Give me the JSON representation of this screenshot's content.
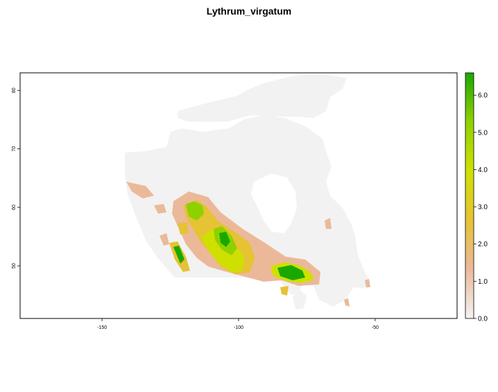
{
  "title": "Lythrum_virgatum",
  "map": {
    "xlim": [
      -180,
      -20
    ],
    "ylim": [
      41,
      83
    ],
    "x_ticks": [
      {
        "value": -150,
        "label": "-150"
      },
      {
        "value": -100,
        "label": "-100"
      },
      {
        "value": -50,
        "label": "-50"
      }
    ],
    "y_ticks": [
      {
        "value": 50,
        "label": "50"
      },
      {
        "value": 60,
        "label": "60"
      },
      {
        "value": 70,
        "label": "70"
      },
      {
        "value": 80,
        "label": "80"
      }
    ]
  },
  "legend": {
    "range": [
      0,
      6.6
    ],
    "ticks": [
      {
        "value": 0,
        "label": "0.0"
      },
      {
        "value": 1,
        "label": "1.0"
      },
      {
        "value": 2,
        "label": "2.0"
      },
      {
        "value": 3,
        "label": "3.0"
      },
      {
        "value": 4,
        "label": "4.0"
      },
      {
        "value": 5,
        "label": "5.0"
      },
      {
        "value": 6,
        "label": "6.0"
      }
    ],
    "colors": [
      "#f2f2f2",
      "#ebb99a",
      "#e6c235",
      "#cfe000",
      "#8fd100",
      "#1aa800"
    ]
  }
}
